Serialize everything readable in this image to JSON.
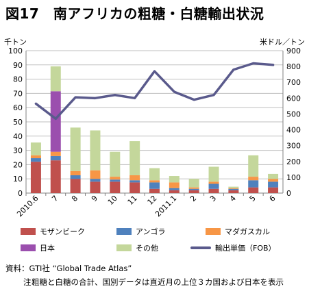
{
  "title": "図17　南アフリカの粗糖・白糖輸出状況",
  "chart_data": {
    "type": "bar",
    "stacked": true,
    "left_unit": "千トン",
    "right_unit": "米ドル／トン",
    "categories": [
      "2010.6",
      "7",
      "8",
      "9",
      "10",
      "11",
      "12",
      "2011.1",
      "2",
      "3",
      "4",
      "5",
      "6"
    ],
    "y_left": {
      "min": 0,
      "max": 100,
      "ticks": [
        0,
        10,
        20,
        30,
        40,
        50,
        60,
        70,
        80,
        90,
        100
      ]
    },
    "y_right": {
      "min": 0,
      "max": 900,
      "ticks": [
        0,
        100,
        200,
        300,
        400,
        500,
        600,
        700,
        800,
        900
      ]
    },
    "grid": true,
    "series": [
      {
        "name": "モザンビーク",
        "color": "#c0504d",
        "values": [
          22,
          23,
          10,
          8,
          8,
          7.5,
          3,
          2,
          2,
          3,
          2,
          4,
          4
        ]
      },
      {
        "name": "アンゴラ",
        "color": "#4f81bd",
        "values": [
          2.5,
          3,
          2.5,
          2,
          1.5,
          1.5,
          4.5,
          1.5,
          1,
          3.5,
          1,
          5,
          4
        ]
      },
      {
        "name": "マダガスカル",
        "color": "#f79646",
        "values": [
          2,
          3,
          3,
          6,
          2,
          3.5,
          1.5,
          4,
          1,
          1.5,
          0.5,
          2.5,
          2
        ]
      },
      {
        "name": "日本",
        "color": "#9b4fae",
        "values": [
          0,
          42.5,
          0,
          0,
          0,
          0,
          0,
          0,
          0,
          0,
          0,
          0,
          0
        ]
      },
      {
        "name": "その他",
        "color": "#c4d79b",
        "values": [
          9,
          17.5,
          30.5,
          28,
          17.5,
          24,
          8.5,
          4.5,
          6,
          10.5,
          1,
          15,
          3.5
        ]
      }
    ],
    "line_series": {
      "name": "輸出単価（FOB）",
      "axis": "right",
      "color": "#5a5a8c",
      "values": [
        565,
        470,
        605,
        600,
        620,
        600,
        770,
        640,
        590,
        620,
        780,
        820,
        810
      ]
    },
    "legend_position": "bottom"
  },
  "source_label": "資料：",
  "source_text": "GTI社 “Global Trade Atlas”",
  "note_label": "注：",
  "note_text": "粗糖と白糖の合計、国別データは直近月の上位３カ国および日本を表示"
}
